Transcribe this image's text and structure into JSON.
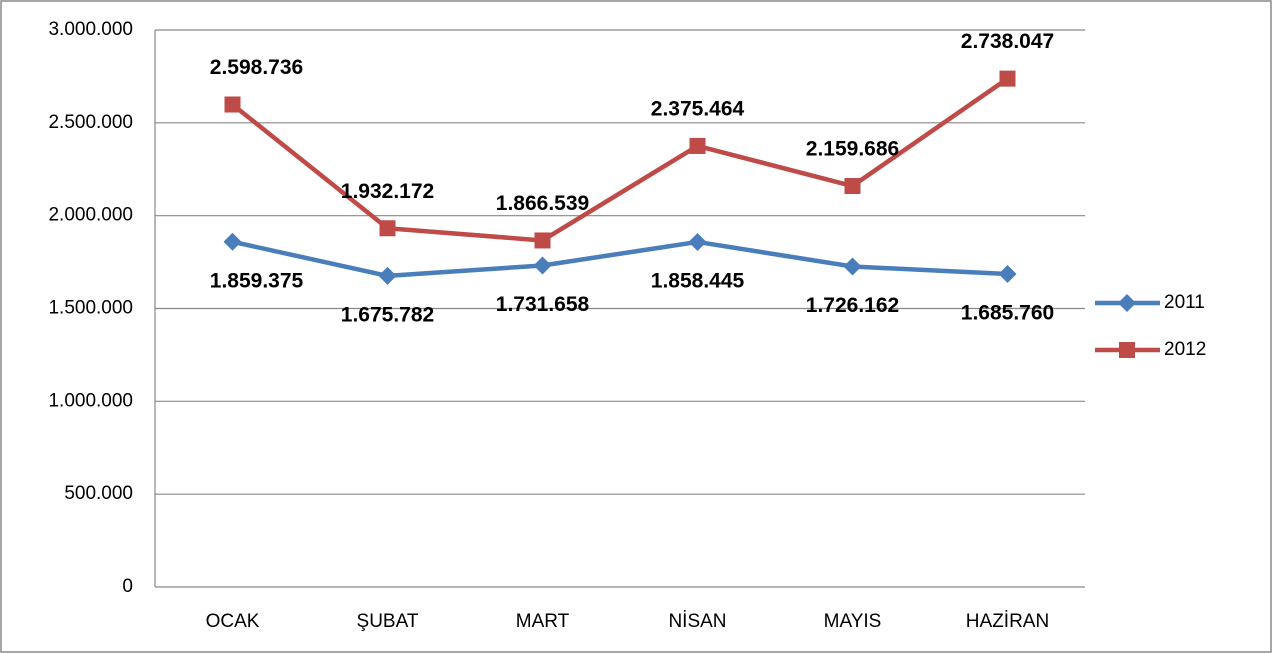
{
  "chart_data": {
    "type": "line",
    "categories": [
      "OCAK",
      "ŞUBAT",
      "MART",
      "NİSAN",
      "MAYIS",
      "HAZİRAN"
    ],
    "series": [
      {
        "name": "2011",
        "color": "#4a7ebb",
        "marker": "diamond",
        "values": [
          1859375,
          1675782,
          1731658,
          1858445,
          1726162,
          1685760
        ],
        "value_labels": [
          "1.859.375",
          "1.675.782",
          "1.731.658",
          "1.858.445",
          "1.726.162",
          "1.685.760"
        ]
      },
      {
        "name": "2012",
        "color": "#be4b48",
        "marker": "square",
        "values": [
          2598736,
          1932172,
          1866539,
          2375464,
          2159686,
          2738047
        ],
        "value_labels": [
          "2.598.736",
          "1.932.172",
          "1.866.539",
          "2.375.464",
          "2.159.686",
          "2.738.047"
        ]
      }
    ],
    "ylim": [
      0,
      3000000
    ],
    "yticks": [
      0,
      {
        "value": 500000,
        "label": "500.000"
      },
      {
        "value": 1000000,
        "label": "1.000.000"
      },
      {
        "value": 1500000,
        "label": "1.500.000"
      },
      {
        "value": 2000000,
        "label": "2.000.000"
      },
      {
        "value": 2500000,
        "label": "2.500.000"
      },
      {
        "value": 3000000,
        "label": "3.000.000"
      }
    ],
    "grid": true,
    "legend": "right"
  }
}
